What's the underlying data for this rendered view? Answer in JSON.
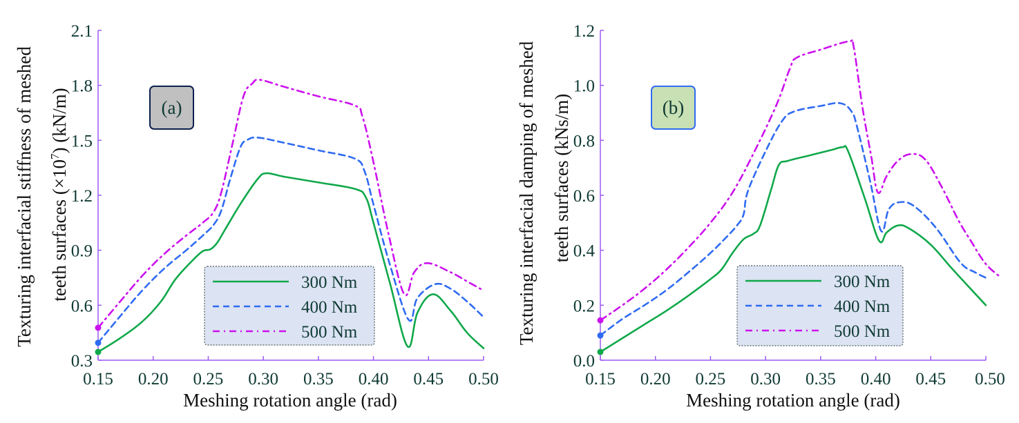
{
  "chart_data": [
    {
      "type": "line",
      "panel_label": "(a)",
      "panel_label_fill": "#c0c0c0",
      "panel_label_border": "#0b1f4d",
      "xlabel": "Meshing rotation angle (rad)",
      "ylabel_line1": "Texturing interfacial stiffness of meshed",
      "ylabel_line2_pre": "teeth surfaces (×10",
      "ylabel_line2_sup": "7",
      "ylabel_line2_post": ") (kN/m)",
      "xlim": [
        0.15,
        0.5
      ],
      "ylim": [
        0.3,
        2.1
      ],
      "xticks": [
        0.15,
        0.2,
        0.25,
        0.3,
        0.35,
        0.4,
        0.45,
        0.5
      ],
      "xtick_labels": [
        "0.15",
        "0.20",
        "0.25",
        "0.30",
        "0.35",
        "0.40",
        "0.45",
        "0.50"
      ],
      "yticks": [
        0.3,
        0.6,
        0.9,
        1.2,
        1.5,
        1.8,
        2.1
      ],
      "ytick_labels": [
        "0.3",
        "0.6",
        "0.9",
        "1.2",
        "1.5",
        "1.8",
        "2.1"
      ],
      "grid": false,
      "legend_position": "bottom-center",
      "series": [
        {
          "name": "300 Nm",
          "color": "#10a84a",
          "style": "solid",
          "points": [
            [
              0.15,
              0.345
            ],
            [
              0.17,
              0.42
            ],
            [
              0.19,
              0.51
            ],
            [
              0.207,
              0.62
            ],
            [
              0.22,
              0.74
            ],
            [
              0.235,
              0.84
            ],
            [
              0.245,
              0.895
            ],
            [
              0.252,
              0.905
            ],
            [
              0.258,
              0.94
            ],
            [
              0.265,
              1.01
            ],
            [
              0.28,
              1.16
            ],
            [
              0.295,
              1.29
            ],
            [
              0.303,
              1.32
            ],
            [
              0.32,
              1.3
            ],
            [
              0.35,
              1.27
            ],
            [
              0.383,
              1.235
            ],
            [
              0.393,
              1.19
            ],
            [
              0.4,
              1.05
            ],
            [
              0.415,
              0.72
            ],
            [
              0.431,
              0.375
            ],
            [
              0.44,
              0.56
            ],
            [
              0.454,
              0.66
            ],
            [
              0.47,
              0.57
            ],
            [
              0.485,
              0.45
            ],
            [
              0.5,
              0.365
            ]
          ]
        },
        {
          "name": "400 Nm",
          "color": "#2f6bf2",
          "style": "dashed",
          "points": [
            [
              0.15,
              0.395
            ],
            [
              0.17,
              0.54
            ],
            [
              0.19,
              0.68
            ],
            [
              0.21,
              0.8
            ],
            [
              0.23,
              0.9
            ],
            [
              0.245,
              0.98
            ],
            [
              0.255,
              1.04
            ],
            [
              0.262,
              1.12
            ],
            [
              0.27,
              1.29
            ],
            [
              0.279,
              1.46
            ],
            [
              0.285,
              1.5
            ],
            [
              0.295,
              1.515
            ],
            [
              0.32,
              1.485
            ],
            [
              0.35,
              1.445
            ],
            [
              0.383,
              1.4
            ],
            [
              0.392,
              1.33
            ],
            [
              0.4,
              1.15
            ],
            [
              0.415,
              0.82
            ],
            [
              0.432,
              0.52
            ],
            [
              0.44,
              0.64
            ],
            [
              0.456,
              0.715
            ],
            [
              0.47,
              0.69
            ],
            [
              0.485,
              0.62
            ],
            [
              0.5,
              0.535
            ]
          ]
        },
        {
          "name": "500 Nm",
          "color": "#cc11ee",
          "style": "dashdot",
          "points": [
            [
              0.15,
              0.477
            ],
            [
              0.17,
              0.62
            ],
            [
              0.19,
              0.76
            ],
            [
              0.21,
              0.88
            ],
            [
              0.23,
              0.98
            ],
            [
              0.245,
              1.05
            ],
            [
              0.255,
              1.11
            ],
            [
              0.262,
              1.22
            ],
            [
              0.272,
              1.48
            ],
            [
              0.282,
              1.74
            ],
            [
              0.29,
              1.81
            ],
            [
              0.297,
              1.83
            ],
            [
              0.32,
              1.79
            ],
            [
              0.35,
              1.74
            ],
            [
              0.383,
              1.69
            ],
            [
              0.39,
              1.63
            ],
            [
              0.4,
              1.38
            ],
            [
              0.414,
              0.98
            ],
            [
              0.428,
              0.66
            ],
            [
              0.437,
              0.78
            ],
            [
              0.449,
              0.83
            ],
            [
              0.47,
              0.78
            ],
            [
              0.485,
              0.73
            ],
            [
              0.5,
              0.68
            ]
          ]
        }
      ]
    },
    {
      "type": "line",
      "panel_label": "(b)",
      "panel_label_fill": "#c8e0b4",
      "panel_label_border": "#2f6bf2",
      "xlabel": "Meshing rotation angle (rad)",
      "ylabel_line1": "Texturing interfacial damping of meshed",
      "ylabel_line2": "teeth surfaces (kNs/m)",
      "xlim": [
        0.15,
        0.5
      ],
      "ylim": [
        0.0,
        1.2
      ],
      "xticks": [
        0.15,
        0.2,
        0.25,
        0.3,
        0.35,
        0.4,
        0.45,
        0.5
      ],
      "xtick_labels": [
        "0.15",
        "0.20",
        "0.25",
        "0.30",
        "0.35",
        "0.40",
        "0.45",
        "0.50"
      ],
      "yticks": [
        0.0,
        0.2,
        0.4,
        0.6,
        0.8,
        1.0,
        1.2
      ],
      "ytick_labels": [
        "0.0",
        "0.2",
        "0.4",
        "0.6",
        "0.8",
        "1.0",
        "1.2"
      ],
      "grid": false,
      "legend_position": "bottom-center",
      "series": [
        {
          "name": "300 Nm",
          "color": "#10a84a",
          "style": "solid",
          "points": [
            [
              0.15,
              0.03
            ],
            [
              0.17,
              0.08
            ],
            [
              0.19,
              0.13
            ],
            [
              0.21,
              0.18
            ],
            [
              0.23,
              0.235
            ],
            [
              0.25,
              0.295
            ],
            [
              0.26,
              0.33
            ],
            [
              0.27,
              0.39
            ],
            [
              0.28,
              0.44
            ],
            [
              0.289,
              0.46
            ],
            [
              0.295,
              0.49
            ],
            [
              0.305,
              0.62
            ],
            [
              0.312,
              0.71
            ],
            [
              0.32,
              0.725
            ],
            [
              0.34,
              0.745
            ],
            [
              0.36,
              0.765
            ],
            [
              0.37,
              0.775
            ],
            [
              0.375,
              0.76
            ],
            [
              0.39,
              0.59
            ],
            [
              0.403,
              0.435
            ],
            [
              0.41,
              0.465
            ],
            [
              0.42,
              0.49
            ],
            [
              0.43,
              0.48
            ],
            [
              0.45,
              0.42
            ],
            [
              0.47,
              0.33
            ],
            [
              0.5,
              0.2
            ]
          ]
        },
        {
          "name": "400 Nm",
          "color": "#2f6bf2",
          "style": "dashed",
          "points": [
            [
              0.15,
              0.09
            ],
            [
              0.17,
              0.15
            ],
            [
              0.19,
              0.2
            ],
            [
              0.21,
              0.255
            ],
            [
              0.23,
              0.32
            ],
            [
              0.25,
              0.39
            ],
            [
              0.265,
              0.45
            ],
            [
              0.274,
              0.49
            ],
            [
              0.28,
              0.53
            ],
            [
              0.284,
              0.615
            ],
            [
              0.3,
              0.76
            ],
            [
              0.315,
              0.87
            ],
            [
              0.326,
              0.905
            ],
            [
              0.35,
              0.925
            ],
            [
              0.368,
              0.935
            ],
            [
              0.378,
              0.905
            ],
            [
              0.383,
              0.85
            ],
            [
              0.395,
              0.65
            ],
            [
              0.405,
              0.47
            ],
            [
              0.412,
              0.55
            ],
            [
              0.422,
              0.575
            ],
            [
              0.435,
              0.56
            ],
            [
              0.455,
              0.48
            ],
            [
              0.477,
              0.355
            ],
            [
              0.49,
              0.32
            ],
            [
              0.5,
              0.3
            ]
          ]
        },
        {
          "name": "500 Nm",
          "color": "#cc11ee",
          "style": "dashdot",
          "points": [
            [
              0.15,
              0.145
            ],
            [
              0.17,
              0.2
            ],
            [
              0.19,
              0.26
            ],
            [
              0.21,
              0.33
            ],
            [
              0.23,
              0.41
            ],
            [
              0.25,
              0.5
            ],
            [
              0.27,
              0.61
            ],
            [
              0.29,
              0.76
            ],
            [
              0.31,
              0.93
            ],
            [
              0.322,
              1.06
            ],
            [
              0.328,
              1.1
            ],
            [
              0.35,
              1.13
            ],
            [
              0.376,
              1.16
            ],
            [
              0.38,
              1.14
            ],
            [
              0.388,
              0.92
            ],
            [
              0.396,
              0.74
            ],
            [
              0.402,
              0.61
            ],
            [
              0.41,
              0.67
            ],
            [
              0.42,
              0.725
            ],
            [
              0.432,
              0.75
            ],
            [
              0.445,
              0.73
            ],
            [
              0.46,
              0.63
            ],
            [
              0.475,
              0.51
            ],
            [
              0.487,
              0.43
            ],
            [
              0.5,
              0.35
            ],
            [
              0.514,
              0.3
            ]
          ]
        }
      ]
    }
  ]
}
